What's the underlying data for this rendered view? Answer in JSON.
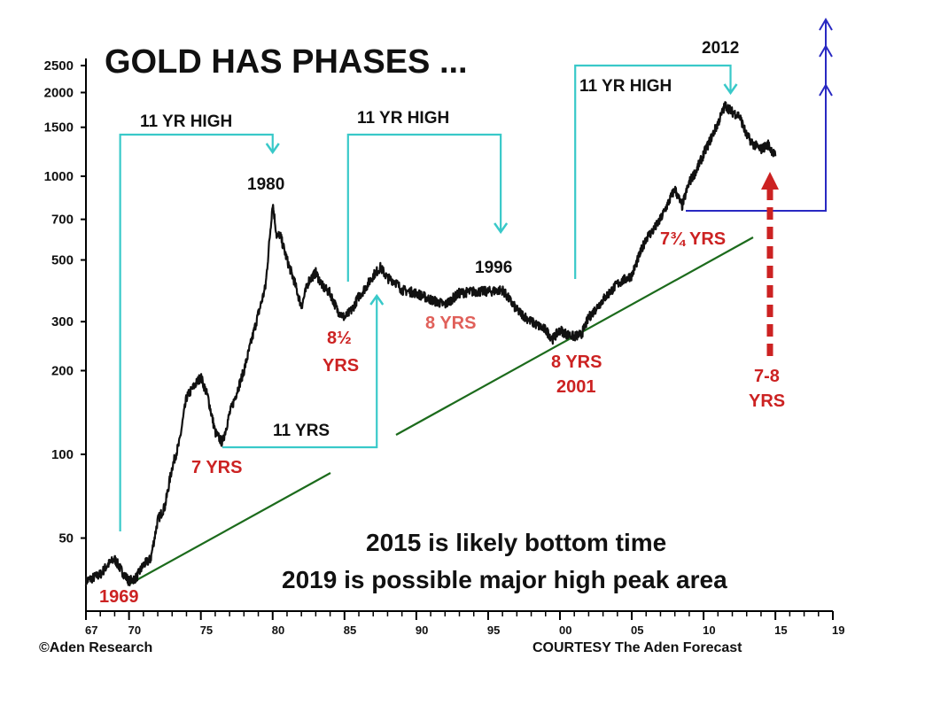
{
  "chart_data": {
    "type": "line",
    "title": "GOLD HAS PHASES ...",
    "yscale": "log",
    "ylim": [
      32,
      2600
    ],
    "xlim": [
      1967,
      2019
    ],
    "yticks": [
      50,
      100,
      200,
      300,
      500,
      700,
      1000,
      1500,
      2000,
      2500
    ],
    "ytick_labels": [
      "50",
      "100",
      "200",
      "300",
      "500",
      "700",
      "1000",
      "1500",
      "2000",
      "2500"
    ],
    "xticks": [
      1967,
      1970,
      1975,
      1980,
      1985,
      1990,
      1995,
      2000,
      2005,
      2010,
      2015,
      2019
    ],
    "xtick_labels": [
      "67",
      "70",
      "75",
      "80",
      "85",
      "90",
      "95",
      "00",
      "05",
      "10",
      "15",
      "19"
    ],
    "series": [
      {
        "x": [
          1967.0,
          1968.0,
          1968.5,
          1969.0,
          1969.5,
          1970.0,
          1970.5,
          1971.0,
          1971.5,
          1972.0,
          1972.5,
          1973.0,
          1973.5,
          1974.0,
          1974.5,
          1975.0,
          1975.5,
          1976.0,
          1976.5,
          1977.0,
          1978.0,
          1979.0,
          1979.5,
          1980.0,
          1980.3,
          1980.5,
          1981.0,
          1981.5,
          1982.0,
          1982.5,
          1983.0,
          1983.5,
          1984.0,
          1984.5,
          1985.0,
          1985.5,
          1986.0,
          1986.5,
          1987.0,
          1987.5,
          1988.0,
          1988.5,
          1989.0,
          1990.0,
          1991.0,
          1992.0,
          1993.0,
          1994.0,
          1995.0,
          1996.0,
          1997.0,
          1998.0,
          1999.0,
          1999.5,
          2000.0,
          2000.5,
          2001.0,
          2001.5,
          2002.0,
          2003.0,
          2004.0,
          2005.0,
          2006.0,
          2006.5,
          2007.0,
          2008.0,
          2008.5,
          2009.0,
          2009.5,
          2010.0,
          2011.0,
          2011.5,
          2012.0,
          2012.5,
          2013.0,
          2013.5,
          2014.0,
          2014.5,
          2015.0
        ],
        "y": [
          35,
          37,
          40,
          42,
          38,
          35,
          36,
          40,
          42,
          58,
          65,
          90,
          110,
          160,
          175,
          190,
          160,
          120,
          110,
          140,
          200,
          320,
          400,
          800,
          600,
          620,
          500,
          420,
          340,
          420,
          450,
          400,
          380,
          330,
          310,
          330,
          370,
          400,
          440,
          470,
          430,
          420,
          390,
          380,
          360,
          345,
          380,
          385,
          385,
          390,
          330,
          300,
          280,
          260,
          280,
          270,
          265,
          270,
          310,
          360,
          410,
          440,
          600,
          640,
          700,
          900,
          780,
          950,
          1050,
          1200,
          1550,
          1800,
          1700,
          1650,
          1400,
          1300,
          1250,
          1300,
          1180
        ]
      }
    ],
    "annotations": {
      "upper_brackets": [
        {
          "label": "11 YR HIGH",
          "start": 1970.0,
          "end": 1980.0
        },
        {
          "label": "11 YR HIGH",
          "start": 1985.0,
          "end": 1996.0
        },
        {
          "label": "11 YR HIGH",
          "start": 2001.0,
          "end": 2012.0
        }
      ],
      "lower_bracket": {
        "label": "11 YRS",
        "start": 1976.0,
        "end": 1987.0
      },
      "peak_labels": [
        "1980",
        "1996",
        "2012"
      ],
      "cycle_labels_red": [
        "1969",
        "7 YRS",
        "8½",
        "YRS",
        "8 YRS",
        "2001",
        "7¾ YRS",
        "7-8",
        "YRS"
      ],
      "cycle_labels_pink": [
        "8 YRS"
      ],
      "notes": [
        "2015 is likely bottom time",
        "2019 is possible major high peak area"
      ],
      "credit_left": "©Aden Research",
      "credit_right": "COURTESY The Aden Forecast"
    },
    "colors": {
      "price": "#111111",
      "brackets": "#39c9c9",
      "trendline": "#1c6b1c",
      "forecast": "#2929c2",
      "cycle_label": "#cc2222",
      "cycle_label_alt": "#e0605a"
    },
    "grid": false
  }
}
